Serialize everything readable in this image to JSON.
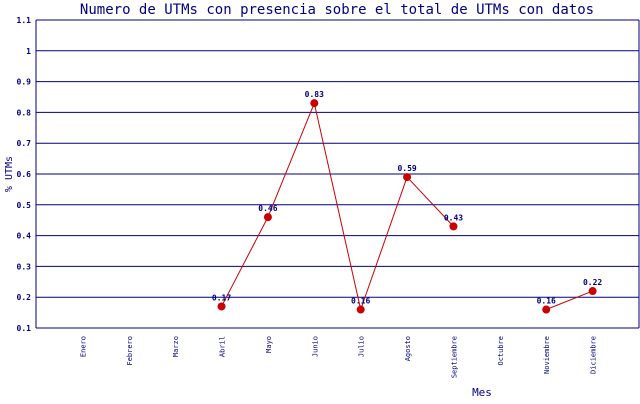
{
  "chart_data": {
    "type": "line",
    "title": "Numero de UTMs con presencia sobre el total de UTMs con datos",
    "xlabel": "Mes",
    "ylabel": "% UTMs",
    "ylim": [
      0.1,
      1.1
    ],
    "yticks": [
      "0.1",
      "0.2",
      "0.3",
      "0.4",
      "0.5",
      "0.6",
      "0.7",
      "0.8",
      "0.9",
      "1",
      "1.1"
    ],
    "grid": true,
    "categories": [
      "Enero",
      "Febrero",
      "Marzo",
      "Abril",
      "Mayo",
      "Junio",
      "Julio",
      "Agosto",
      "Septiembre",
      "Octubre",
      "Noviembre",
      "Diciembre"
    ],
    "values": [
      null,
      null,
      null,
      0.17,
      0.46,
      0.83,
      0.16,
      0.59,
      0.43,
      null,
      0.16,
      0.22
    ],
    "labels": [
      "",
      "",
      "",
      "0.17",
      "0.46",
      "0.83",
      "0.16",
      "0.59",
      "0.43",
      "",
      "0.16",
      "0.22"
    ],
    "colors": {
      "axis": "#000080",
      "line": "#cc0000",
      "marker": "#cc0000"
    }
  }
}
